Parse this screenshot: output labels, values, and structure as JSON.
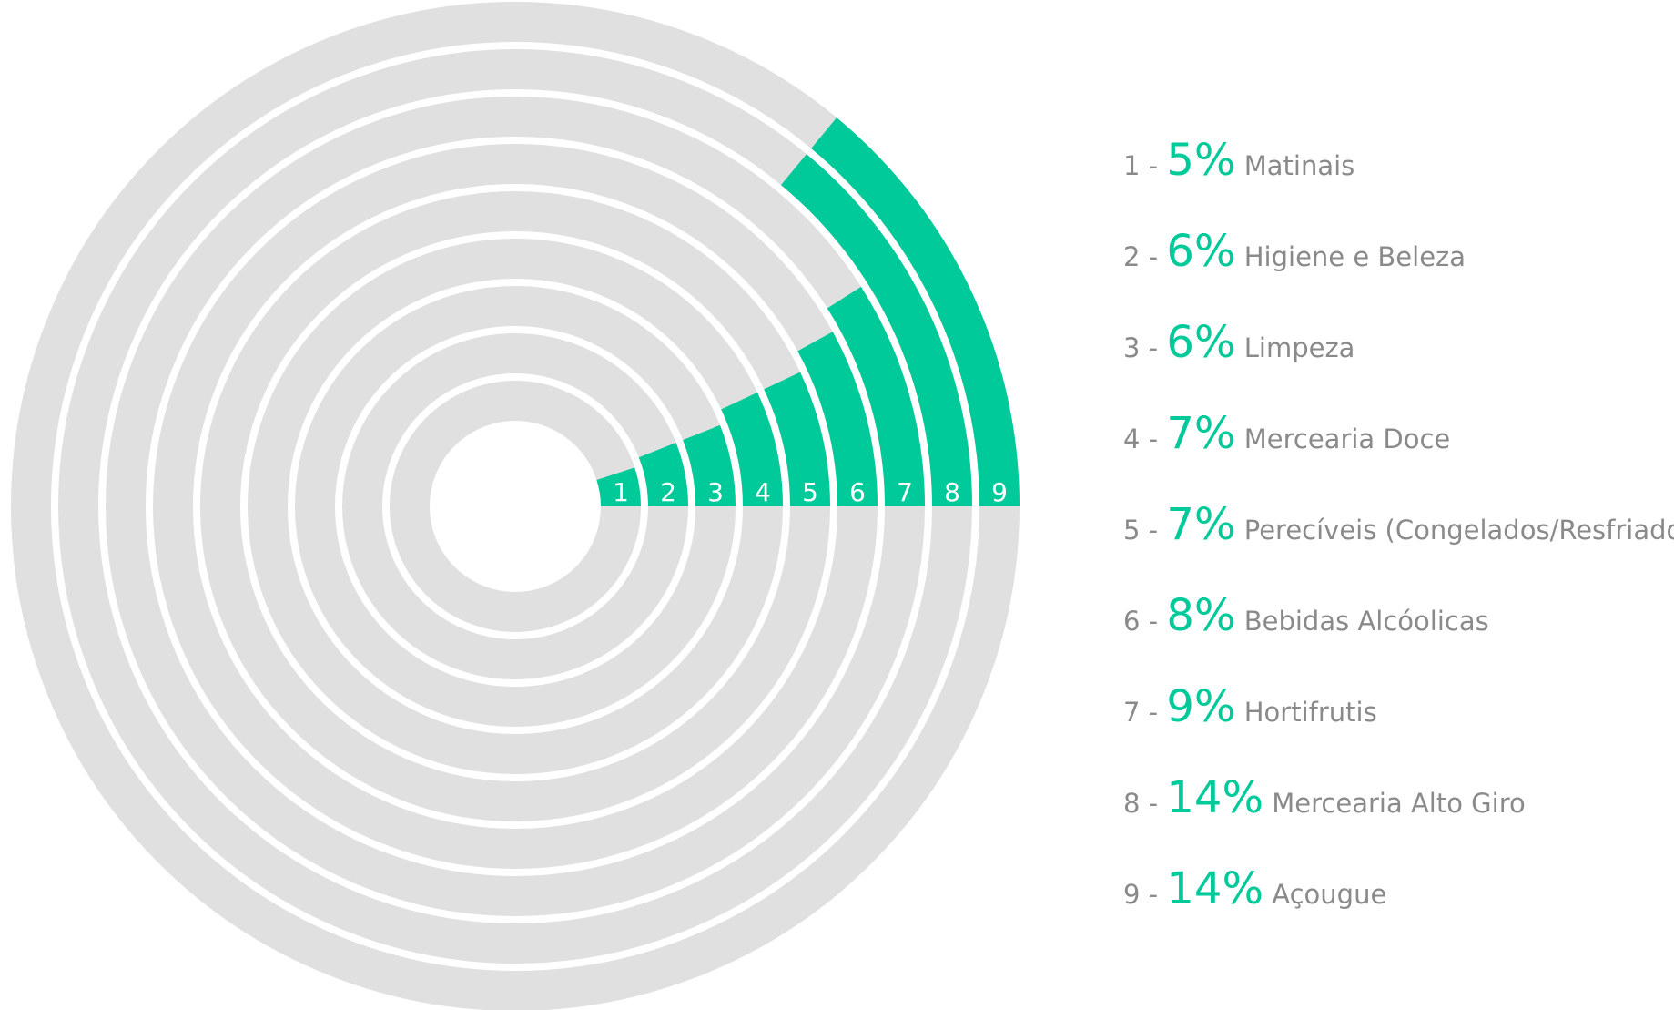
{
  "colors": {
    "accent": "#00c99a",
    "track": "#e0e0e0",
    "background": "#ffffff",
    "text": "#8a8a8a"
  },
  "chart_data": {
    "type": "radial-bar",
    "series": [
      {
        "index": "1",
        "value": 5,
        "value_label": "5%",
        "label": "Matinais"
      },
      {
        "index": "2",
        "value": 6,
        "value_label": "6%",
        "label": "Higiene e Beleza"
      },
      {
        "index": "3",
        "value": 6,
        "value_label": "6%",
        "label": "Limpeza"
      },
      {
        "index": "4",
        "value": 7,
        "value_label": "7%",
        "label": "Mercearia Doce"
      },
      {
        "index": "5",
        "value": 7,
        "value_label": "7%",
        "label": "Perecíveis (Congelados/Resfriados)"
      },
      {
        "index": "6",
        "value": 8,
        "value_label": "8%",
        "label": "Bebidas Alcóolicas"
      },
      {
        "index": "7",
        "value": 9,
        "value_label": "9%",
        "label": "Hortifrutis"
      },
      {
        "index": "8",
        "value": 14,
        "value_label": "14%",
        "label": "Mercearia Alto Giro"
      },
      {
        "index": "9",
        "value": 14,
        "value_label": "14%",
        "label": "Açougue"
      }
    ],
    "legend": "right"
  }
}
